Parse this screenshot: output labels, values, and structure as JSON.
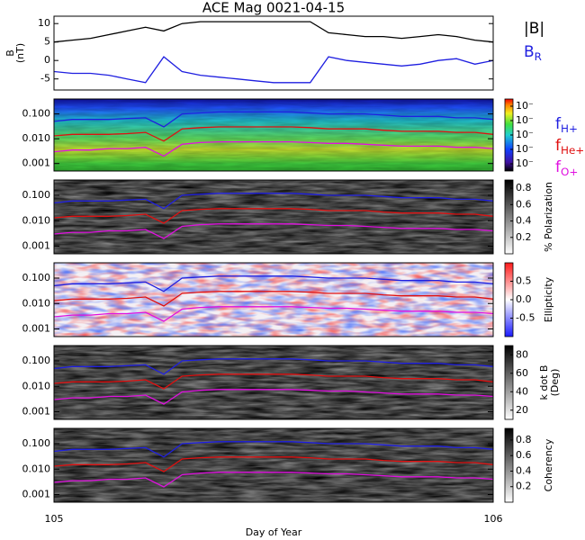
{
  "chart_data": [
    {
      "type": "line",
      "title": "ACE Mag 0021-04-15",
      "ylabel": "B",
      "ylabel_unit": "(nT)",
      "ylim": [
        -8,
        12
      ],
      "yticks": [
        -5,
        0,
        5,
        10
      ],
      "series": [
        {
          "name": "|B|",
          "color": "#000000",
          "values": [
            5,
            5.5,
            6,
            7,
            8,
            9,
            8,
            10,
            10.5,
            10.5,
            10.5,
            10.5,
            10.5,
            10.5,
            10.5,
            7.5,
            7,
            6.5,
            6.5,
            6,
            6.5,
            7,
            6.5,
            5.5,
            5
          ]
        },
        {
          "name": "B",
          "name_sub": "R",
          "color": "#1f1fe0",
          "values": [
            -3,
            -3.5,
            -3.5,
            -4,
            -5,
            -6,
            1,
            -3,
            -4,
            -4.5,
            -5,
            -5.5,
            -6,
            -6,
            -6,
            1,
            0,
            -0.5,
            -1,
            -1.5,
            -1,
            0,
            0.5,
            -1,
            0
          ]
        }
      ]
    },
    {
      "type": "spectrogram",
      "colormap": "rainbow",
      "log": true,
      "ylim": [
        0.0005,
        0.4
      ],
      "yticks": [
        {
          "value": 0.001,
          "label": "0.001"
        },
        {
          "value": 0.01,
          "label": "0.010"
        },
        {
          "value": 0.1,
          "label": "0.100"
        }
      ],
      "clim": [
        0.5,
        5.5
      ],
      "cticks": [
        {
          "value": 1,
          "label": "10⁻"
        },
        {
          "value": 2,
          "label": "10⁻"
        },
        {
          "value": 3,
          "label": "10⁻"
        },
        {
          "value": 4,
          "label": "10⁻"
        },
        {
          "value": 5,
          "label": "10⁻"
        }
      ],
      "series": [
        {
          "name": "f",
          "name_sub": "H+",
          "color": "#1f1fe0",
          "values": [
            0.05,
            0.06,
            0.06,
            0.06,
            0.065,
            0.07,
            0.03,
            0.1,
            0.11,
            0.12,
            0.12,
            0.12,
            0.12,
            0.12,
            0.11,
            0.1,
            0.1,
            0.1,
            0.09,
            0.08,
            0.08,
            0.08,
            0.07,
            0.07,
            0.06
          ]
        },
        {
          "name": "f",
          "name_sub": "He+",
          "color": "#e01010",
          "values": [
            0.013,
            0.015,
            0.015,
            0.015,
            0.016,
            0.018,
            0.008,
            0.025,
            0.028,
            0.03,
            0.03,
            0.03,
            0.03,
            0.03,
            0.028,
            0.025,
            0.025,
            0.025,
            0.022,
            0.02,
            0.02,
            0.02,
            0.018,
            0.018,
            0.015
          ]
        },
        {
          "name": "f",
          "name_sub": "O+",
          "color": "#e010e0",
          "values": [
            0.003,
            0.0035,
            0.0035,
            0.004,
            0.004,
            0.0045,
            0.002,
            0.006,
            0.007,
            0.0075,
            0.0075,
            0.0075,
            0.0075,
            0.0075,
            0.007,
            0.0065,
            0.0065,
            0.006,
            0.0055,
            0.005,
            0.005,
            0.005,
            0.0045,
            0.0045,
            0.004
          ]
        }
      ]
    },
    {
      "type": "spectrogram",
      "colormap": "gray",
      "log": true,
      "ylim": [
        0.0005,
        0.4
      ],
      "yticks": [
        {
          "value": 0.001,
          "label": "0.001"
        },
        {
          "value": 0.01,
          "label": "0.010"
        },
        {
          "value": 0.1,
          "label": "0.100"
        }
      ],
      "clabel": "% Polarization",
      "clim": [
        0,
        0.9
      ],
      "cticks": [
        0.2,
        0.4,
        0.6,
        0.8
      ]
    },
    {
      "type": "spectrogram",
      "colormap": "bwr",
      "log": true,
      "ylim": [
        0.0005,
        0.4
      ],
      "yticks": [
        {
          "value": 0.001,
          "label": "0.001"
        },
        {
          "value": 0.01,
          "label": "0.010"
        },
        {
          "value": 0.1,
          "label": "0.100"
        }
      ],
      "clabel": "Ellipticity",
      "clim": [
        -1,
        1
      ],
      "cticks": [
        -0.5,
        {
          "value": 0,
          "label": "0.0"
        },
        0.5
      ]
    },
    {
      "type": "spectrogram",
      "colormap": "gray",
      "log": true,
      "ylim": [
        0.0005,
        0.4
      ],
      "yticks": [
        {
          "value": 0.001,
          "label": "0.001"
        },
        {
          "value": 0.01,
          "label": "0.010"
        },
        {
          "value": 0.1,
          "label": "0.100"
        }
      ],
      "clabel": "k dot B",
      "clabel_unit": "(Deg)",
      "clim": [
        10,
        90
      ],
      "cticks": [
        20,
        40,
        60,
        80
      ]
    },
    {
      "type": "spectrogram",
      "colormap": "gray",
      "log": true,
      "ylim": [
        0.0005,
        0.4
      ],
      "yticks": [
        {
          "value": 0.001,
          "label": "0.001"
        },
        {
          "value": 0.01,
          "label": "0.010"
        },
        {
          "value": 0.1,
          "label": "0.100"
        }
      ],
      "clabel": "Coherency",
      "clim": [
        0,
        0.95
      ],
      "cticks": [
        0.2,
        0.4,
        0.6,
        0.8
      ],
      "xlabel": "Day of Year",
      "xlim": [
        105,
        106
      ],
      "xticks": [
        105,
        106
      ],
      "x": [
        105,
        105.0417,
        105.0833,
        105.125,
        105.1667,
        105.2083,
        105.25,
        105.2917,
        105.3333,
        105.375,
        105.4167,
        105.4583,
        105.5,
        105.5417,
        105.5833,
        105.625,
        105.6667,
        105.7083,
        105.75,
        105.7917,
        105.8333,
        105.875,
        105.9167,
        105.9583,
        106
      ]
    }
  ]
}
